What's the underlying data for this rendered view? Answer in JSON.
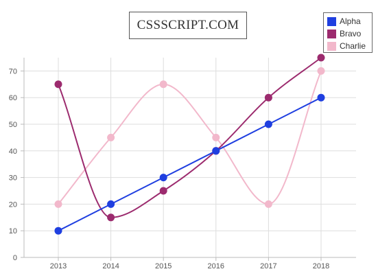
{
  "chart_data": {
    "type": "line",
    "title": "CSSSCRIPT.COM",
    "categories": [
      "2013",
      "2014",
      "2015",
      "2016",
      "2017",
      "2018"
    ],
    "ylim": [
      0,
      75
    ],
    "yticks": [
      0,
      10,
      20,
      30,
      40,
      50,
      60,
      70
    ],
    "grid": true,
    "smooth": true,
    "legend_position": "top-right",
    "series": [
      {
        "name": "Alpha",
        "color": "#1f3fe0",
        "values": [
          10,
          20,
          30,
          40,
          50,
          60
        ]
      },
      {
        "name": "Bravo",
        "color": "#9c2b6e",
        "values": [
          65,
          15,
          25,
          40,
          60,
          75
        ]
      },
      {
        "name": "Charlie",
        "color": "#f2b8cb",
        "values": [
          20,
          45,
          65,
          45,
          20,
          70
        ]
      }
    ]
  }
}
